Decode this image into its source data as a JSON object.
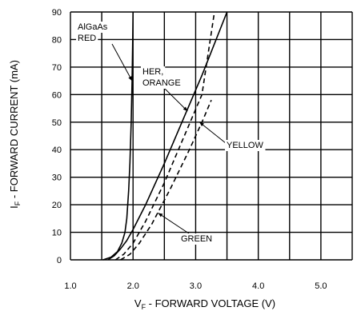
{
  "chart_data": {
    "type": "line",
    "xlabel": "VF - FORWARD VOLTAGE (V)",
    "ylabel": "IF - FORWARD CURRENT (mA)",
    "xlim": [
      1.0,
      5.5
    ],
    "ylim": [
      0,
      90
    ],
    "x_ticks": [
      "1.0",
      "2.0",
      "3.0",
      "4.0",
      "5.0"
    ],
    "y_ticks": [
      "0",
      "10",
      "20",
      "30",
      "40",
      "50",
      "60",
      "70",
      "80",
      "90"
    ],
    "grid": true,
    "series": [
      {
        "name": "AlGaAs RED",
        "style": "solid",
        "x": [
          1.52,
          1.65,
          1.75,
          1.82,
          1.87,
          1.9,
          1.93,
          1.95,
          1.97,
          1.985,
          1.995,
          2.0
        ],
        "y": [
          0,
          1,
          3,
          6,
          10,
          15,
          25,
          35,
          50,
          65,
          80,
          90
        ]
      },
      {
        "name": "HER, ORANGE",
        "style": "solid",
        "x": [
          1.6,
          1.7,
          1.8,
          1.9,
          2.0,
          2.2,
          2.5,
          2.8,
          3.1,
          3.5
        ],
        "y": [
          0,
          1.5,
          4,
          7,
          11,
          20,
          35,
          51,
          67,
          90
        ]
      },
      {
        "name": "YELLOW",
        "style": "dashed",
        "x": [
          1.72,
          1.85,
          2.0,
          2.2,
          2.5,
          2.8,
          3.1,
          3.3
        ],
        "y": [
          0,
          2,
          6,
          14,
          28,
          44,
          60,
          90
        ]
      },
      {
        "name": "GREEN",
        "style": "dashed",
        "x": [
          1.8,
          1.95,
          2.1,
          2.3,
          2.6,
          2.9,
          3.1,
          3.25
        ],
        "y": [
          0,
          2,
          6,
          13,
          26,
          40,
          50,
          58
        ]
      }
    ],
    "annotations": [
      {
        "lines": [
          "AlGaAs",
          "RED"
        ]
      },
      {
        "lines": [
          "HER,",
          "ORANGE"
        ]
      },
      {
        "lines": [
          "YELLOW"
        ]
      },
      {
        "lines": [
          "GREEN"
        ]
      }
    ]
  }
}
